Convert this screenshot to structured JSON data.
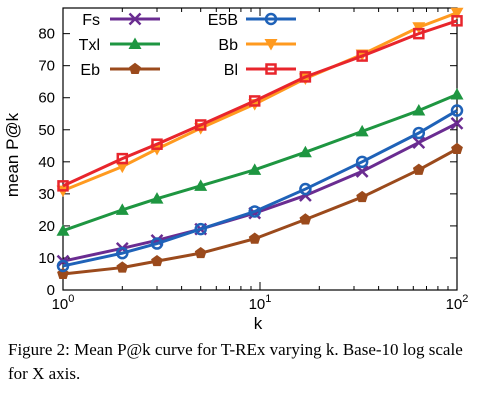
{
  "chart_data": {
    "type": "line",
    "xlabel": "k",
    "ylabel": "mean P@k",
    "xscale": "log10",
    "xlim": [
      1,
      100
    ],
    "ylim": [
      0,
      88
    ],
    "x_ticks": [
      {
        "value": 1,
        "base": "10",
        "exp": "0"
      },
      {
        "value": 10,
        "base": "10",
        "exp": "1"
      },
      {
        "value": 100,
        "base": "10",
        "exp": "2"
      }
    ],
    "y_ticks": [
      0,
      10,
      20,
      30,
      40,
      50,
      60,
      70,
      80
    ],
    "legend_placement": "top-left",
    "series": [
      {
        "name": "Fs",
        "color": "#6a2c91",
        "marker": "x",
        "x": [
          1,
          2,
          3,
          5,
          9.4,
          17,
          33,
          64,
          100
        ],
        "y": [
          9,
          13,
          15.5,
          19,
          24,
          29.5,
          37,
          46,
          52
        ]
      },
      {
        "name": "Txl",
        "color": "#1e9641",
        "marker": "triangle",
        "x": [
          1,
          2,
          3,
          5,
          9.4,
          17,
          33,
          64,
          100
        ],
        "y": [
          18.5,
          25,
          28.5,
          32.5,
          37.5,
          43,
          49.5,
          56,
          61
        ]
      },
      {
        "name": "Eb",
        "color": "#9b4a1c",
        "marker": "pentagon",
        "x": [
          1,
          2,
          3,
          5,
          9.4,
          17,
          33,
          64,
          100
        ],
        "y": [
          5,
          7,
          9,
          11.5,
          16,
          22,
          29,
          37.5,
          44
        ]
      },
      {
        "name": "E5B",
        "color": "#1f62b8",
        "marker": "circle",
        "x": [
          1,
          2,
          3,
          5,
          9.4,
          17,
          33,
          64,
          100
        ],
        "y": [
          7.5,
          11.5,
          14.5,
          19,
          24.5,
          31.5,
          40,
          49,
          56
        ]
      },
      {
        "name": "Bb",
        "color": "#ff9a1f",
        "marker": "triangle-down",
        "x": [
          1,
          2,
          3,
          5,
          9.4,
          17,
          33,
          64,
          100
        ],
        "y": [
          31,
          38.5,
          44,
          50.5,
          58,
          66,
          73.5,
          82,
          86.5
        ]
      },
      {
        "name": "Bl",
        "color": "#e8252c",
        "marker": "square",
        "x": [
          1,
          2,
          3,
          5,
          9.4,
          17,
          33,
          64,
          100
        ],
        "y": [
          32.5,
          41,
          45.5,
          51.5,
          59,
          66.5,
          73,
          80,
          84
        ]
      }
    ]
  },
  "caption": "Figure 2: Mean P@k curve for T-REx varying k. Base-10 log scale for X axis."
}
